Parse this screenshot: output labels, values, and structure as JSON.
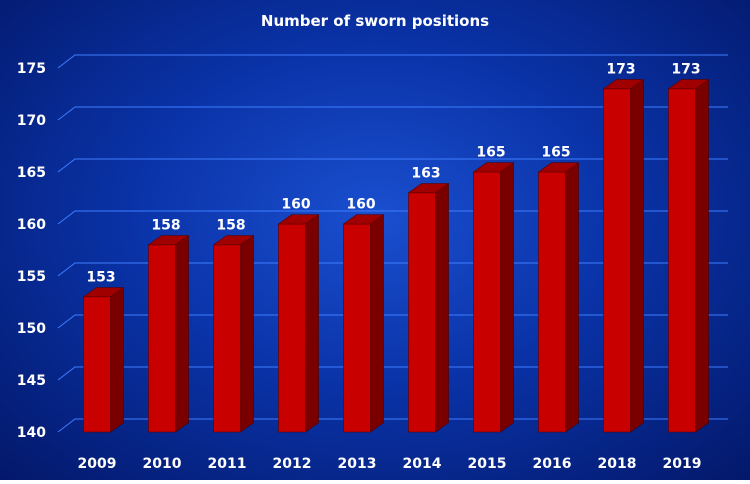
{
  "chart_data": {
    "type": "bar",
    "title": "Number of sworn positions",
    "xlabel": "",
    "ylabel": "",
    "categories": [
      "2009",
      "2010",
      "2011",
      "2012",
      "2013",
      "2014",
      "2015",
      "2016",
      "2018",
      "2019"
    ],
    "values": [
      153,
      158,
      158,
      160,
      160,
      163,
      165,
      165,
      173,
      173
    ],
    "ylim": [
      140,
      175
    ],
    "yticks": [
      140,
      145,
      150,
      155,
      160,
      165,
      170,
      175
    ],
    "grid": true,
    "legend": "none",
    "style": "3d-bars",
    "colors": {
      "bar_front": "#c80000",
      "bar_side": "#7a0000",
      "bar_top": "#a00000",
      "gridline": "#3f7dff",
      "text": "#ffffff"
    }
  }
}
